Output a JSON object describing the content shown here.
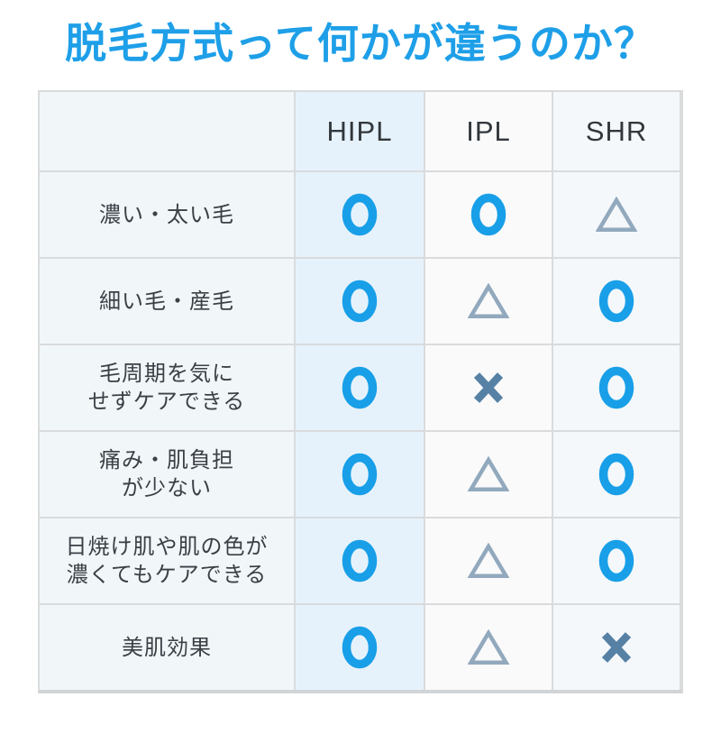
{
  "title": {
    "text": "脱毛方式って何かが違うのか？"
  },
  "colors": {
    "accent": "#1e9fe8",
    "circle": "#189fe8",
    "triangle": "#92a9bd",
    "cross": "#5681a4",
    "border": "#d9dbdd",
    "border_bottom": "#d1d5d8",
    "col_label_bg": "#f1f6f9",
    "col_hipl_bg": "#e6f2fb",
    "col_ipl_bg": "#fafafb",
    "col_shr_bg": "#f4f8fb",
    "header_text": "#32373c",
    "label_text": "#3b4046"
  },
  "table": {
    "columns": [
      "",
      "HIPL",
      "IPL",
      "SHR"
    ],
    "rows": [
      {
        "label": "濃い・太い毛",
        "label_lines": [
          "濃い・太い毛"
        ],
        "values": [
          "circle",
          "circle",
          "triangle"
        ]
      },
      {
        "label": "細い毛・産毛",
        "label_lines": [
          "細い毛・産毛"
        ],
        "values": [
          "circle",
          "triangle",
          "circle"
        ]
      },
      {
        "label": "毛周期を気にせずケアできる",
        "label_lines": [
          "毛周期を気に",
          "せずケアできる"
        ],
        "values": [
          "circle",
          "cross",
          "circle"
        ]
      },
      {
        "label": "痛み・肌負担が少ない",
        "label_lines": [
          "痛み・肌負担",
          "が少ない"
        ],
        "values": [
          "circle",
          "triangle",
          "circle"
        ]
      },
      {
        "label": "日焼け肌や肌の色が濃くてもケアできる",
        "label_lines": [
          "日焼け肌や肌の色が",
          "濃くてもケアできる"
        ],
        "values": [
          "circle",
          "triangle",
          "circle"
        ]
      },
      {
        "label": "美肌効果",
        "label_lines": [
          "美肌効果"
        ],
        "values": [
          "circle",
          "triangle",
          "cross"
        ]
      }
    ]
  },
  "chart_data": {
    "type": "table",
    "title": "脱毛方式って何かが違うのか？",
    "columns": [
      "HIPL",
      "IPL",
      "SHR"
    ],
    "rows": [
      {
        "label": "濃い・太い毛",
        "values": [
          "○",
          "○",
          "△"
        ]
      },
      {
        "label": "細い毛・産毛",
        "values": [
          "○",
          "△",
          "○"
        ]
      },
      {
        "label": "毛周期を気にせずケアできる",
        "values": [
          "○",
          "×",
          "○"
        ]
      },
      {
        "label": "痛み・肌負担が少ない",
        "values": [
          "○",
          "△",
          "○"
        ]
      },
      {
        "label": "日焼け肌や肌の色が濃くてもケアできる",
        "values": [
          "○",
          "△",
          "○"
        ]
      },
      {
        "label": "美肌効果",
        "values": [
          "○",
          "△",
          "×"
        ]
      }
    ],
    "symbols": {
      "circle": "○",
      "triangle": "△",
      "cross": "×"
    }
  }
}
